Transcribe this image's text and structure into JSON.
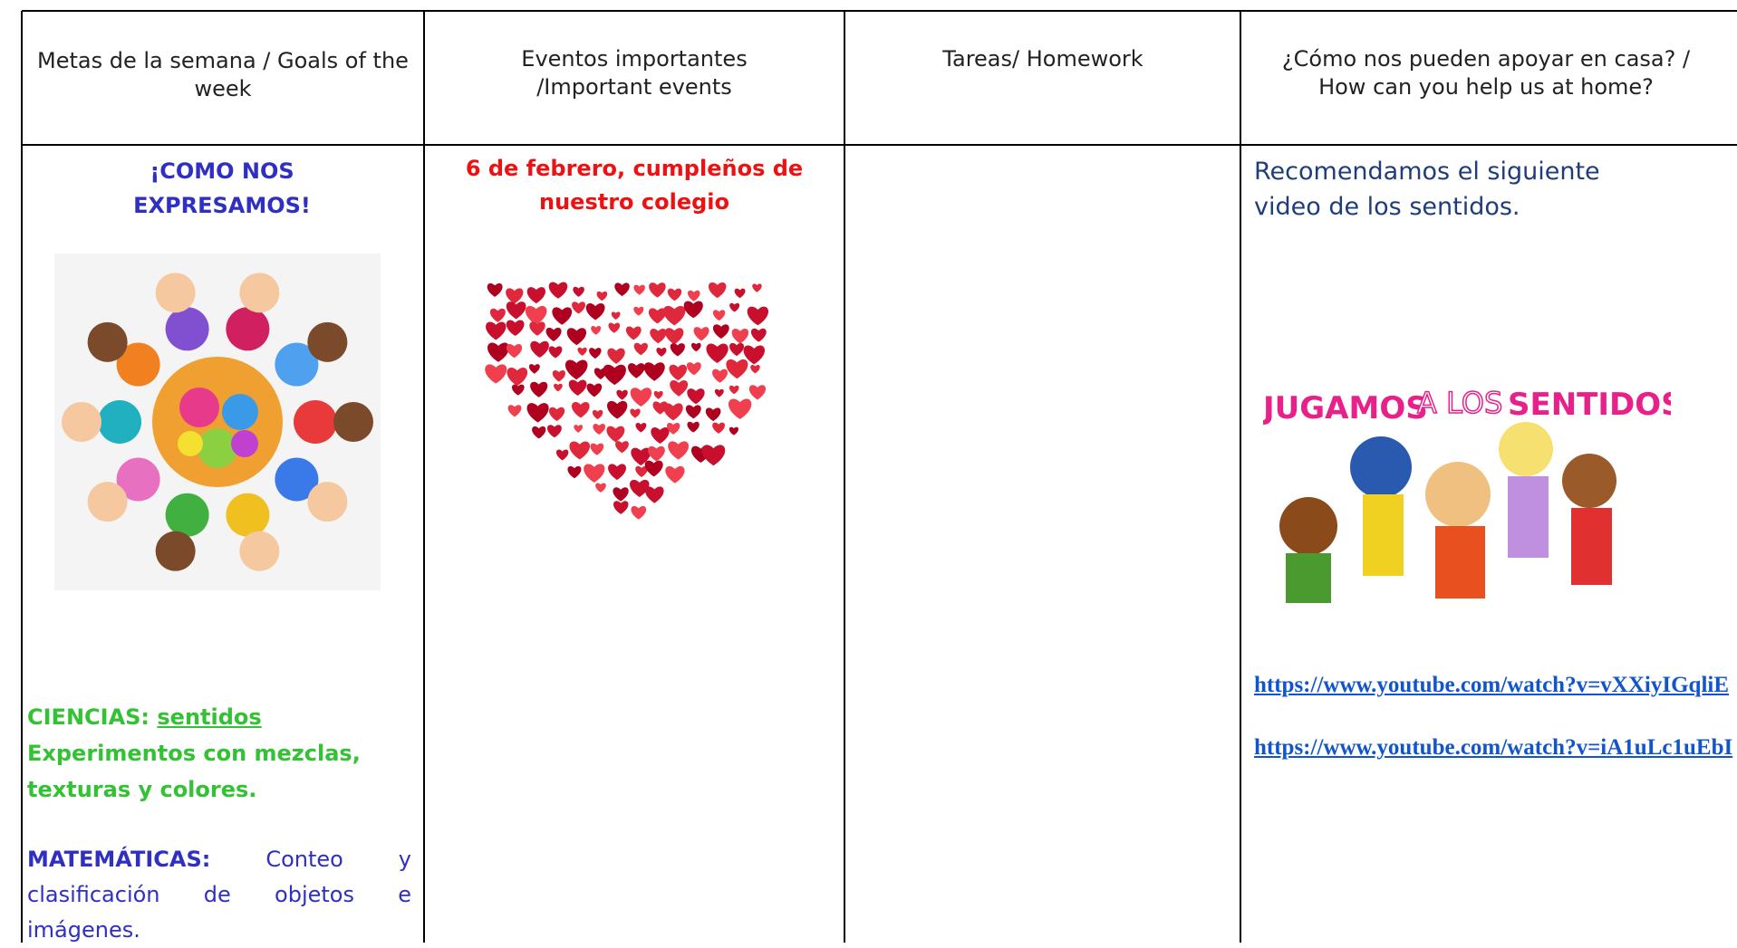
{
  "header": {
    "columns": [
      "Metas de la semana / Goals of the week",
      "Eventos importantes /Important events",
      "Tareas/ Homework",
      "¿Cómo nos pueden apoyar en casa? / How can you help us at home?"
    ]
  },
  "goals": {
    "title": "¡COMO NOS EXPRESAMOS!",
    "science_label": "CIENCIAS:",
    "science_topic": "sentidos",
    "science_text": "Experimentos con mezclas, texturas y colores.",
    "math_label": "MATEMÁTICAS:",
    "math_text": "Conteo y clasificación de objetos e imágenes."
  },
  "events": {
    "title": "6 de febrero, cumpleños de nuestro colegio"
  },
  "help": {
    "text": "Recomendamos el siguiente video de los sentidos.",
    "image_caption": [
      "JUGAMOS",
      "A LOS",
      "SENTIDOS"
    ],
    "links": [
      "https://www.youtube.com/watch?v=vXXiyIGqliE",
      "https://www.youtube.com/watch?v=iA1uLc1uEbI"
    ]
  }
}
